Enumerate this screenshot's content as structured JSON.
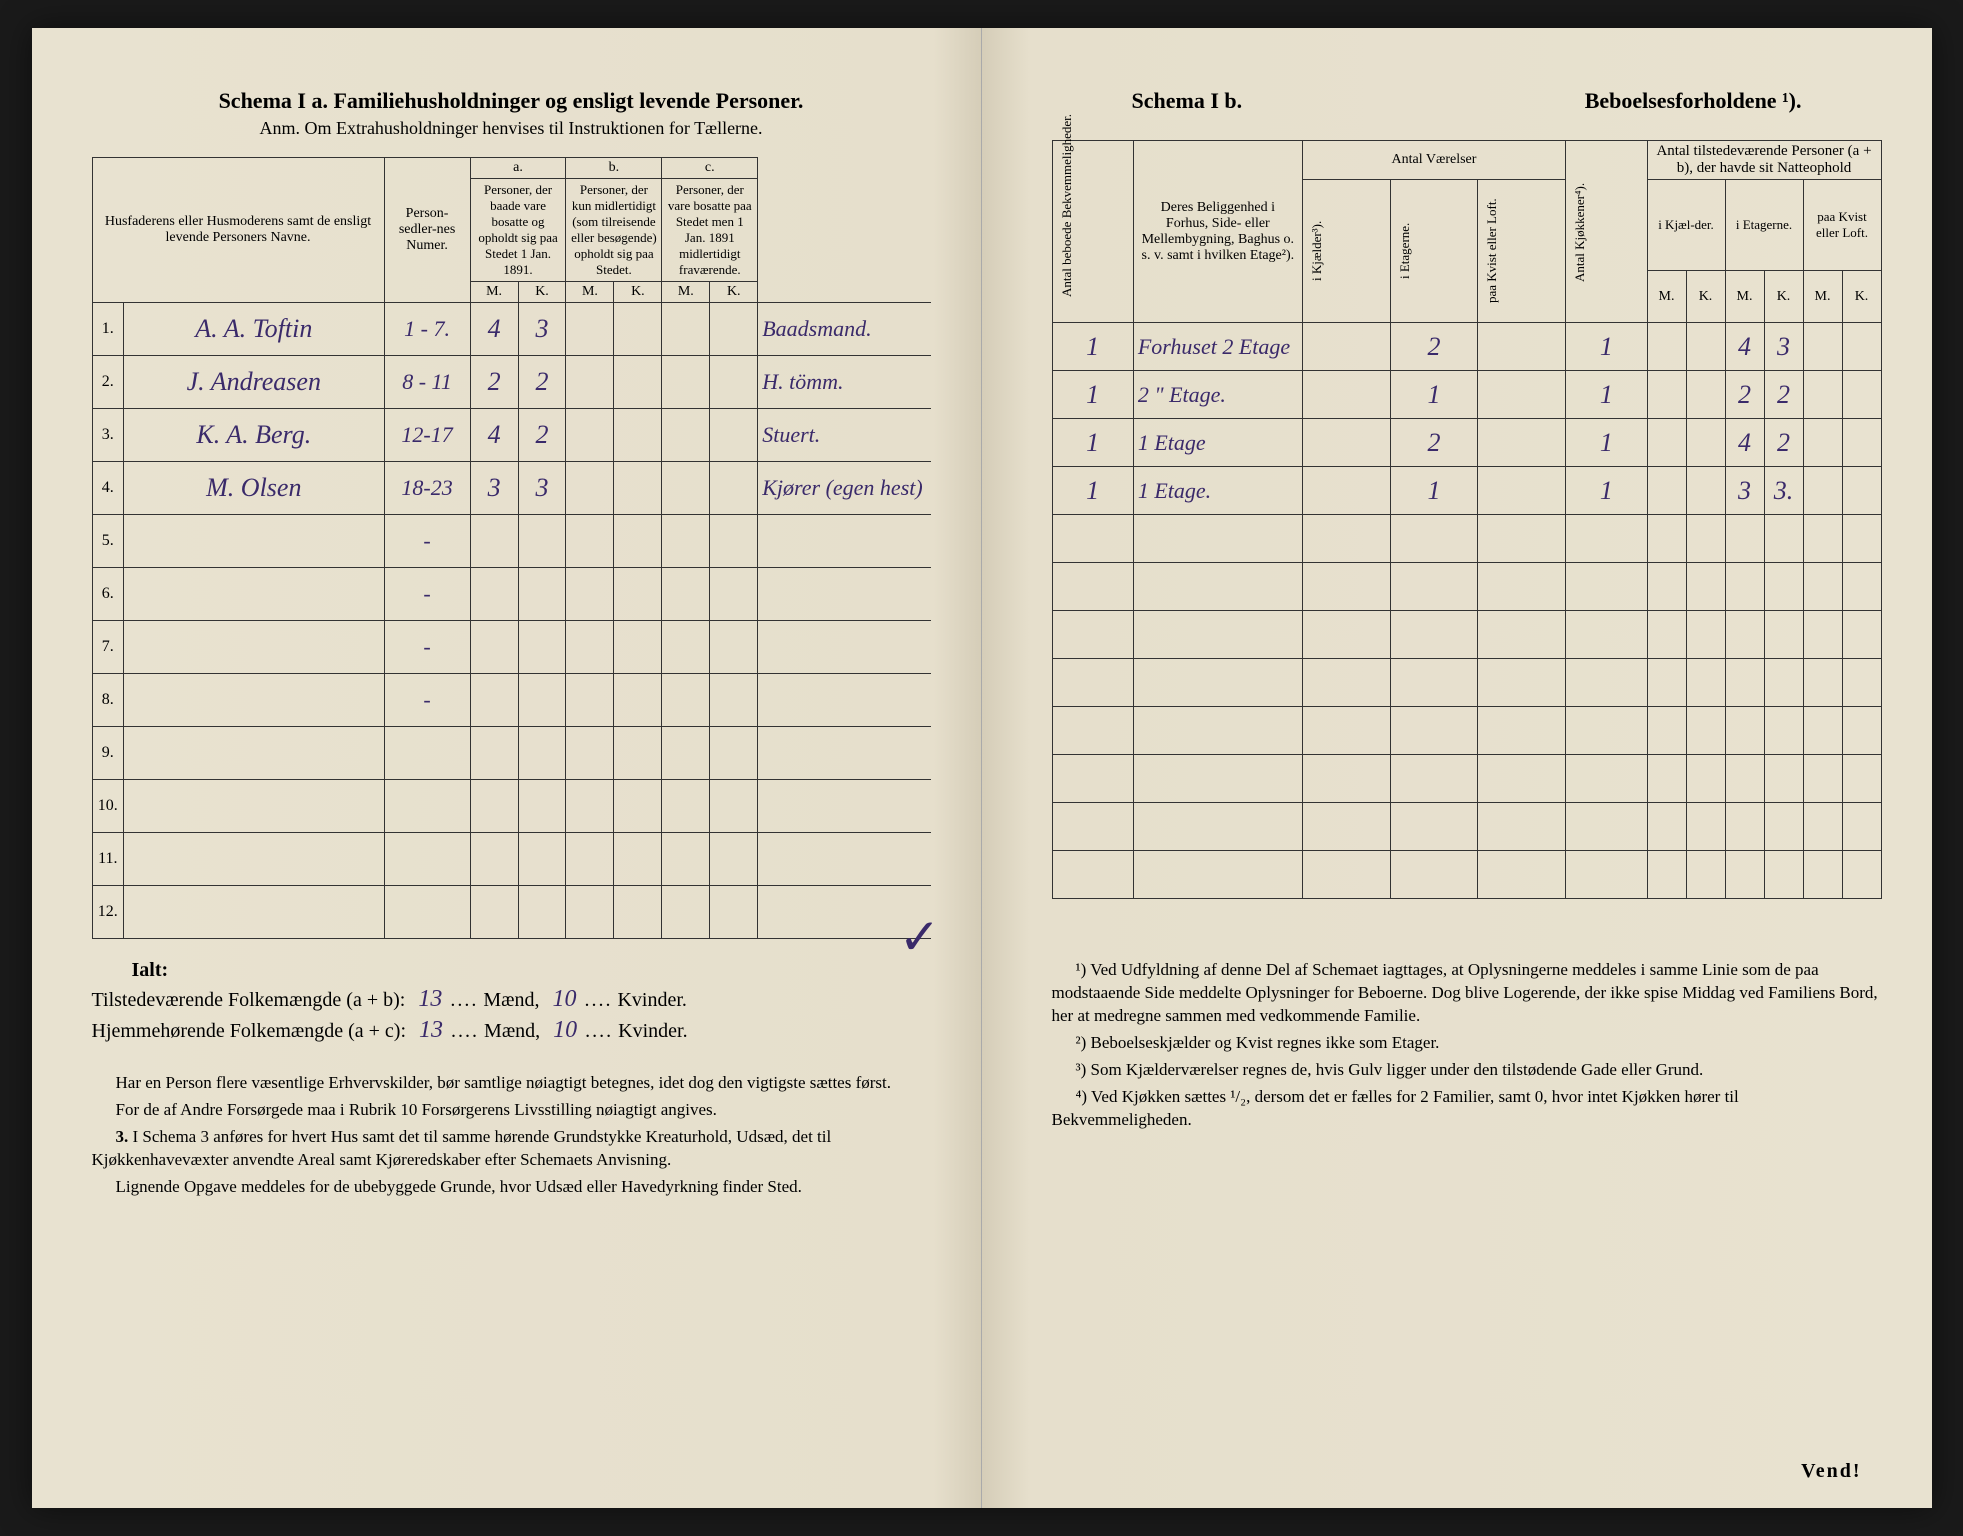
{
  "left": {
    "title": "Schema I a.  Familiehusholdninger og ensligt levende Personer.",
    "subtitle": "Anm.  Om Extrahusholdninger henvises til Instruktionen for Tællerne.",
    "headers": {
      "names": "Husfaderens eller Husmoderens samt de ensligt levende Personers Navne.",
      "person_num": "Person-sedler-nes Numer.",
      "a_label": "a.",
      "a_text": "Personer, der baade vare bosatte og opholdt sig paa Stedet 1 Jan. 1891.",
      "b_label": "b.",
      "b_text": "Personer, der kun midlertidigt (som tilreisende eller besøgende) opholdt sig paa Stedet.",
      "c_label": "c.",
      "c_text": "Personer, der vare bosatte paa Stedet men 1 Jan. 1891 midlertidigt fraværende.",
      "M": "M.",
      "K": "K."
    },
    "rows": [
      {
        "n": "1.",
        "name": "A. A. Toftin",
        "pnum": "1 - 7.",
        "aM": "4",
        "aK": "3",
        "bM": "",
        "bK": "",
        "cM": "",
        "cK": "",
        "occ": "Baadsmand."
      },
      {
        "n": "2.",
        "name": "J. Andreasen",
        "pnum": "8 - 11",
        "aM": "2",
        "aK": "2",
        "bM": "",
        "bK": "",
        "cM": "",
        "cK": "",
        "occ": "H. tömm."
      },
      {
        "n": "3.",
        "name": "K. A. Berg.",
        "pnum": "12-17",
        "aM": "4",
        "aK": "2",
        "bM": "",
        "bK": "",
        "cM": "",
        "cK": "",
        "occ": "Stuert."
      },
      {
        "n": "4.",
        "name": "M. Olsen",
        "pnum": "18-23",
        "aM": "3",
        "aK": "3",
        "bM": "",
        "bK": "",
        "cM": "",
        "cK": "",
        "occ": "Kjører (egen hest)"
      },
      {
        "n": "5.",
        "name": "",
        "pnum": "-",
        "aM": "",
        "aK": "",
        "bM": "",
        "bK": "",
        "cM": "",
        "cK": "",
        "occ": ""
      },
      {
        "n": "6.",
        "name": "",
        "pnum": "-",
        "aM": "",
        "aK": "",
        "bM": "",
        "bK": "",
        "cM": "",
        "cK": "",
        "occ": ""
      },
      {
        "n": "7.",
        "name": "",
        "pnum": "-",
        "aM": "",
        "aK": "",
        "bM": "",
        "bK": "",
        "cM": "",
        "cK": "",
        "occ": ""
      },
      {
        "n": "8.",
        "name": "",
        "pnum": "-",
        "aM": "",
        "aK": "",
        "bM": "",
        "bK": "",
        "cM": "",
        "cK": "",
        "occ": ""
      },
      {
        "n": "9.",
        "name": "",
        "pnum": "",
        "aM": "",
        "aK": "",
        "bM": "",
        "bK": "",
        "cM": "",
        "cK": "",
        "occ": ""
      },
      {
        "n": "10.",
        "name": "",
        "pnum": "",
        "aM": "",
        "aK": "",
        "bM": "",
        "bK": "",
        "cM": "",
        "cK": "",
        "occ": ""
      },
      {
        "n": "11.",
        "name": "",
        "pnum": "",
        "aM": "",
        "aK": "",
        "bM": "",
        "bK": "",
        "cM": "",
        "cK": "",
        "occ": ""
      },
      {
        "n": "12.",
        "name": "",
        "pnum": "",
        "aM": "",
        "aK": "",
        "bM": "",
        "bK": "",
        "cM": "",
        "cK": "",
        "occ": ""
      }
    ],
    "ialt": "Ialt:",
    "tot1_label_a": "Tilstedeværende Folkemængde (a + b):",
    "tot1_m": "13",
    "tot1_mlabel": "Mænd,",
    "tot1_k": "10",
    "tot1_klabel": "Kvinder.",
    "tot2_label_a": "Hjemmehørende Folkemængde (a + c):",
    "tot2_m": "13",
    "tot2_k": "10",
    "foot1": "Har en Person flere væsentlige Erhvervskilder, bør samtlige nøiagtigt betegnes, idet dog den vigtigste sættes først.",
    "foot2": "For de af Andre Forsørgede maa i Rubrik 10 Forsørgerens Livsstilling nøiagtigt angives.",
    "foot3_num": "3.",
    "foot3": "I Schema 3 anføres for hvert Hus samt det til samme hørende Grundstykke Kreaturhold, Udsæd, det til Kjøkkenhavevæxter anvendte Areal samt Kjøreredskaber efter Schemaets Anvisning.",
    "foot4": "Lignende Opgave meddeles for de ubebyggede Grunde, hvor Udsæd eller Havedyrkning finder Sted."
  },
  "right": {
    "title_a": "Schema I b.",
    "title_b": "Beboelsesforholdene ¹).",
    "headers": {
      "bekv": "Antal beboede Bekvemmeligheder.",
      "belig": "Deres Beliggenhed i Forhus, Side- eller Mellembygning, Baghus o. s. v. samt i hvilken Etage²).",
      "vaer": "Antal Værelser",
      "kjokken": "Antal Kjøkkener⁴).",
      "natte": "Antal tilstedeværende Personer (a + b), der havde sit Natteophold",
      "kjael": "i Kjælder³).",
      "etag": "i Etagerne.",
      "kvist": "paa Kvist eller Loft.",
      "ikjael": "i Kjæl-der.",
      "ietag": "i Etagerne.",
      "pkvist": "paa Kvist eller Loft.",
      "M": "M.",
      "K": "K."
    },
    "rows": [
      {
        "occ": "",
        "bekv": "1",
        "belig": "Forhuset 2 Etage",
        "kj": "",
        "et": "2",
        "kv": "",
        "kk": "1",
        "km": "",
        "kk2": "",
        "em": "4",
        "ek": "3",
        "lm": "",
        "lk": ""
      },
      {
        "occ": "",
        "bekv": "1",
        "belig": "2 \" Etage.",
        "kj": "",
        "et": "1",
        "kv": "",
        "kk": "1",
        "km": "",
        "kk2": "",
        "em": "2",
        "ek": "2",
        "lm": "",
        "lk": ""
      },
      {
        "occ": "",
        "bekv": "1",
        "belig": "1 Etage",
        "kj": "",
        "et": "2",
        "kv": "",
        "kk": "1",
        "km": "",
        "kk2": "",
        "em": "4",
        "ek": "2",
        "lm": "",
        "lk": ""
      },
      {
        "occ": "",
        "bekv": "1",
        "belig": "1 Etage.",
        "kj": "",
        "et": "1",
        "kv": "",
        "kk": "1",
        "km": "",
        "kk2": "",
        "em": "3",
        "ek": "3.",
        "lm": "",
        "lk": ""
      },
      {},
      {},
      {},
      {},
      {},
      {},
      {},
      {}
    ],
    "foot1": "¹) Ved Udfyldning af denne Del af Schemaet iagttages, at Oplysningerne meddeles i samme Linie som de paa modstaaende Side meddelte Oplysninger for Beboerne. Dog blive Logerende, der ikke spise Middag ved Familiens Bord, her at medregne sammen med vedkommende Familie.",
    "foot2": "²) Beboelseskjælder og Kvist regnes ikke som Etager.",
    "foot3": "³) Som Kjælderværelser regnes de, hvis Gulv ligger under den tilstødende Gade eller Grund.",
    "foot4": "⁴) Ved Kjøkken sættes ¹/₂, dersom det er fælles for 2 Familier, samt 0, hvor intet Kjøkken hører til Bekvemmeligheden.",
    "vend": "Vend!"
  }
}
